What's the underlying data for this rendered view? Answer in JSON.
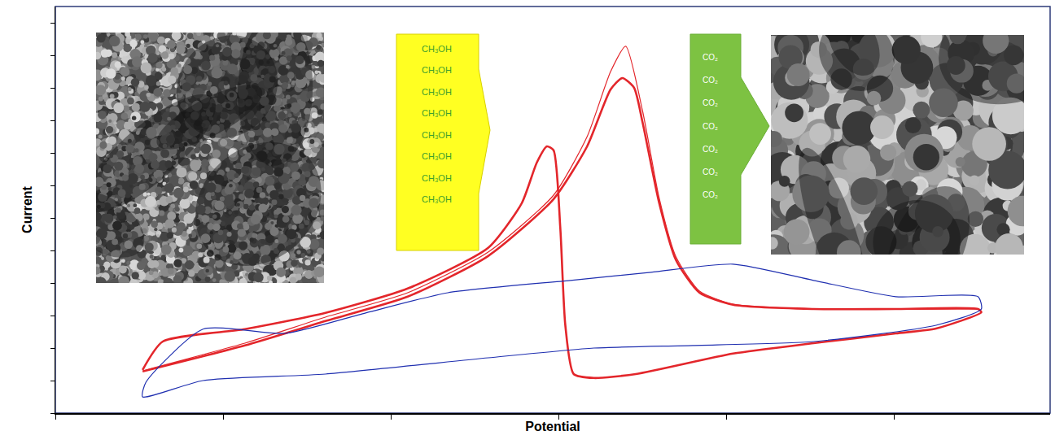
{
  "chart_data": {
    "type": "line",
    "x_label": "Potential",
    "y_label": "Current",
    "xlim": [
      0,
      5.93
    ],
    "xticks": [
      0,
      1,
      2,
      3,
      4,
      5
    ],
    "ylim": [
      0,
      12.5
    ],
    "yticks": [
      0,
      1,
      2,
      3,
      4,
      5,
      6,
      7,
      8,
      9,
      10,
      11,
      12
    ],
    "tick_labels": false,
    "grid": false,
    "series": [
      {
        "color": "#e3262b",
        "x": [
          0.52,
          1.13,
          1.61,
          2.1,
          2.58,
          2.97,
          3.17,
          3.31,
          3.38,
          3.45,
          3.5,
          3.6,
          3.7,
          3.84,
          4.04,
          4.52,
          5.01,
          5.5,
          5.52,
          5.25,
          5.01,
          4.52,
          4.04,
          3.46,
          3.21,
          3.09,
          3.04,
          3.01,
          2.97,
          2.93,
          2.87,
          2.78,
          2.58,
          2.1,
          1.61,
          1.13,
          0.64,
          0.52
        ],
        "values": [
          1.28,
          2.08,
          2.83,
          3.58,
          4.83,
          6.58,
          8.2,
          9.95,
          10.3,
          10.0,
          8.95,
          6.45,
          4.7,
          3.7,
          3.33,
          3.2,
          3.2,
          3.2,
          3.1,
          2.6,
          2.45,
          2.15,
          1.83,
          1.2,
          1.08,
          1.2,
          2.7,
          5.7,
          8.08,
          8.2,
          7.7,
          6.45,
          5.08,
          3.83,
          3.08,
          2.58,
          2.2,
          1.33
        ]
      },
      {
        "color": "#e3262b",
        "x": [
          1.0,
          0.52,
          1.13,
          1.61,
          2.1,
          2.58,
          2.97,
          3.17,
          3.31,
          3.4,
          3.5,
          3.6,
          3.7,
          3.84,
          4.04,
          4.52,
          5.5
        ],
        "values": [
          1.9,
          1.3,
          2.15,
          2.95,
          3.7,
          4.95,
          6.7,
          8.5,
          10.5,
          11.28,
          9.3,
          6.6,
          4.8,
          3.75,
          3.35,
          3.2,
          3.2
        ]
      },
      {
        "color": "#1f2fb0",
        "x": [
          3.21,
          2.58,
          1.61,
          0.88,
          0.52,
          0.54,
          0.88,
          1.37,
          1.85,
          2.34,
          3.07,
          3.55,
          4.04,
          4.52,
          5.01,
          5.5,
          5.52,
          5.25,
          4.52,
          3.8,
          3.21
        ],
        "values": [
          2.0,
          1.7,
          1.2,
          1.0,
          0.5,
          0.95,
          2.58,
          2.45,
          3.08,
          3.7,
          4.08,
          4.33,
          4.58,
          4.08,
          3.58,
          3.58,
          3.2,
          2.7,
          2.2,
          2.08,
          2.0
        ]
      }
    ],
    "annotations": {
      "reactant": [
        "CH₃OH",
        "CH₃OH",
        "CH₃OH",
        "CH₃OH",
        "CH₃OH",
        "CH₃OH",
        "CH₃OH",
        "CH₃OH"
      ],
      "product": [
        "CO₂",
        "CO₂",
        "CO₂",
        "CO₂",
        "CO₂",
        "CO₂",
        "CO₂"
      ]
    }
  }
}
